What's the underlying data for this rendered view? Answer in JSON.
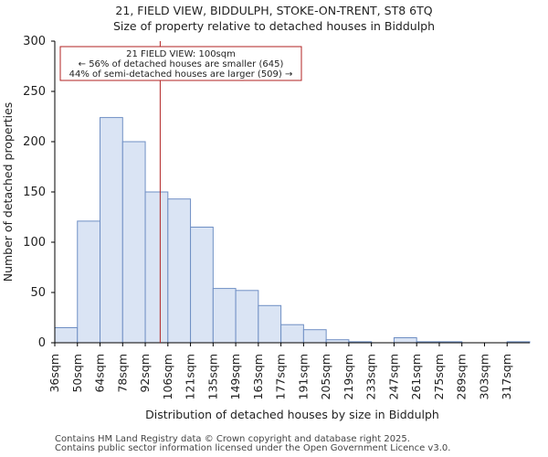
{
  "chart_data": {
    "type": "bar",
    "title": "21, FIELD VIEW, BIDDULPH, STOKE-ON-TRENT, ST8 6TQ",
    "subtitle": "Size of property relative to detached houses in Biddulph",
    "xlabel": "Distribution of detached houses by size in Biddulph",
    "ylabel": "Number of detached properties",
    "categories": [
      "36sqm",
      "50sqm",
      "64sqm",
      "78sqm",
      "92sqm",
      "106sqm",
      "121sqm",
      "135sqm",
      "149sqm",
      "163sqm",
      "177sqm",
      "191sqm",
      "205sqm",
      "219sqm",
      "233sqm",
      "247sqm",
      "261sqm",
      "275sqm",
      "289sqm",
      "303sqm",
      "317sqm"
    ],
    "values": [
      15,
      121,
      224,
      200,
      150,
      143,
      115,
      54,
      52,
      37,
      18,
      13,
      3,
      1,
      0,
      5,
      1,
      1,
      0,
      0,
      1
    ],
    "ylim": [
      0,
      300
    ],
    "yticks": [
      0,
      50,
      100,
      150,
      200,
      250,
      300
    ],
    "bar_fill": "#dae4f4",
    "bar_edge": "#6f8fc4",
    "marker": {
      "value": 100,
      "position_in_bins": 4.66,
      "color": "#b22222",
      "annotation_lines": [
        "21 FIELD VIEW: 100sqm",
        "← 56% of detached houses are smaller (645)",
        "44% of semi-detached houses are larger (509) →"
      ]
    }
  },
  "footer": {
    "line1": "Contains HM Land Registry data © Crown copyright and database right 2025.",
    "line2": "Contains public sector information licensed under the Open Government Licence v3.0."
  }
}
